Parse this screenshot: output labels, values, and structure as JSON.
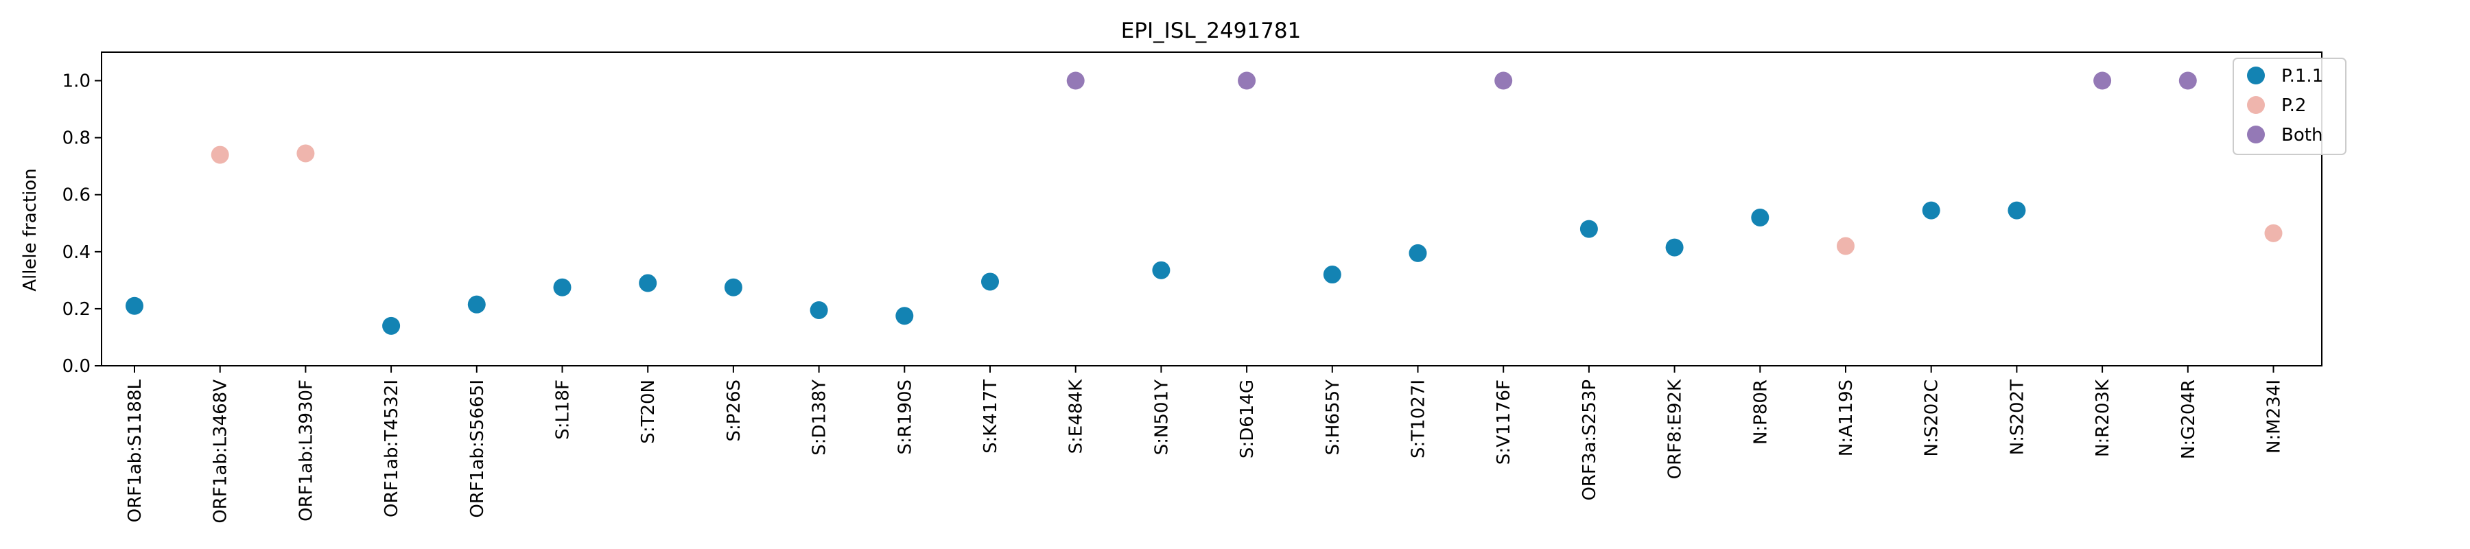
{
  "chart_data": {
    "type": "scatter",
    "title": "EPI_ISL_2491781",
    "xlabel": "",
    "ylabel": "Allele fraction",
    "ylim": [
      0.0,
      1.1
    ],
    "yticks": [
      "0.0",
      "0.2",
      "0.4",
      "0.6",
      "0.8",
      "1.0"
    ],
    "grid": false,
    "legend_position": "top-right",
    "colors": {
      "P.1.1": "#1383b3",
      "P.2": "#efb5ad",
      "Both": "#9479b6"
    },
    "legend": [
      "P.1.1",
      "P.2",
      "Both"
    ],
    "categories": [
      "ORF1ab:S1188L",
      "ORF1ab:L3468V",
      "ORF1ab:L3930F",
      "ORF1ab:T4532I",
      "ORF1ab:S5665I",
      "S:L18F",
      "S:T20N",
      "S:P26S",
      "S:D138Y",
      "S:R190S",
      "S:K417T",
      "S:E484K",
      "S:N501Y",
      "S:D614G",
      "S:H655Y",
      "S:T1027I",
      "S:V1176F",
      "ORF3a:S253P",
      "ORF8:E92K",
      "N:P80R",
      "N:A119S",
      "N:S202C",
      "N:S202T",
      "N:R203K",
      "N:G204R",
      "N:M234I"
    ],
    "points": [
      {
        "x": "ORF1ab:S1188L",
        "y": 0.21,
        "group": "P.1.1"
      },
      {
        "x": "ORF1ab:L3468V",
        "y": 0.74,
        "group": "P.2"
      },
      {
        "x": "ORF1ab:L3930F",
        "y": 0.745,
        "group": "P.2"
      },
      {
        "x": "ORF1ab:T4532I",
        "y": 0.14,
        "group": "P.1.1"
      },
      {
        "x": "ORF1ab:S5665I",
        "y": 0.215,
        "group": "P.1.1"
      },
      {
        "x": "S:L18F",
        "y": 0.275,
        "group": "P.1.1"
      },
      {
        "x": "S:T20N",
        "y": 0.29,
        "group": "P.1.1"
      },
      {
        "x": "S:P26S",
        "y": 0.275,
        "group": "P.1.1"
      },
      {
        "x": "S:D138Y",
        "y": 0.195,
        "group": "P.1.1"
      },
      {
        "x": "S:R190S",
        "y": 0.175,
        "group": "P.1.1"
      },
      {
        "x": "S:K417T",
        "y": 0.295,
        "group": "P.1.1"
      },
      {
        "x": "S:E484K",
        "y": 1.0,
        "group": "Both"
      },
      {
        "x": "S:N501Y",
        "y": 0.335,
        "group": "P.1.1"
      },
      {
        "x": "S:D614G",
        "y": 1.0,
        "group": "Both"
      },
      {
        "x": "S:H655Y",
        "y": 0.32,
        "group": "P.1.1"
      },
      {
        "x": "S:T1027I",
        "y": 0.395,
        "group": "P.1.1"
      },
      {
        "x": "S:V1176F",
        "y": 1.0,
        "group": "Both"
      },
      {
        "x": "ORF3a:S253P",
        "y": 0.48,
        "group": "P.1.1"
      },
      {
        "x": "ORF8:E92K",
        "y": 0.415,
        "group": "P.1.1"
      },
      {
        "x": "N:P80R",
        "y": 0.52,
        "group": "P.1.1"
      },
      {
        "x": "N:A119S",
        "y": 0.42,
        "group": "P.2"
      },
      {
        "x": "N:S202C",
        "y": 0.545,
        "group": "P.1.1"
      },
      {
        "x": "N:S202T",
        "y": 0.545,
        "group": "P.1.1"
      },
      {
        "x": "N:R203K",
        "y": 1.0,
        "group": "Both"
      },
      {
        "x": "N:G204R",
        "y": 1.0,
        "group": "Both"
      },
      {
        "x": "N:M234I",
        "y": 0.465,
        "group": "P.2"
      }
    ]
  }
}
